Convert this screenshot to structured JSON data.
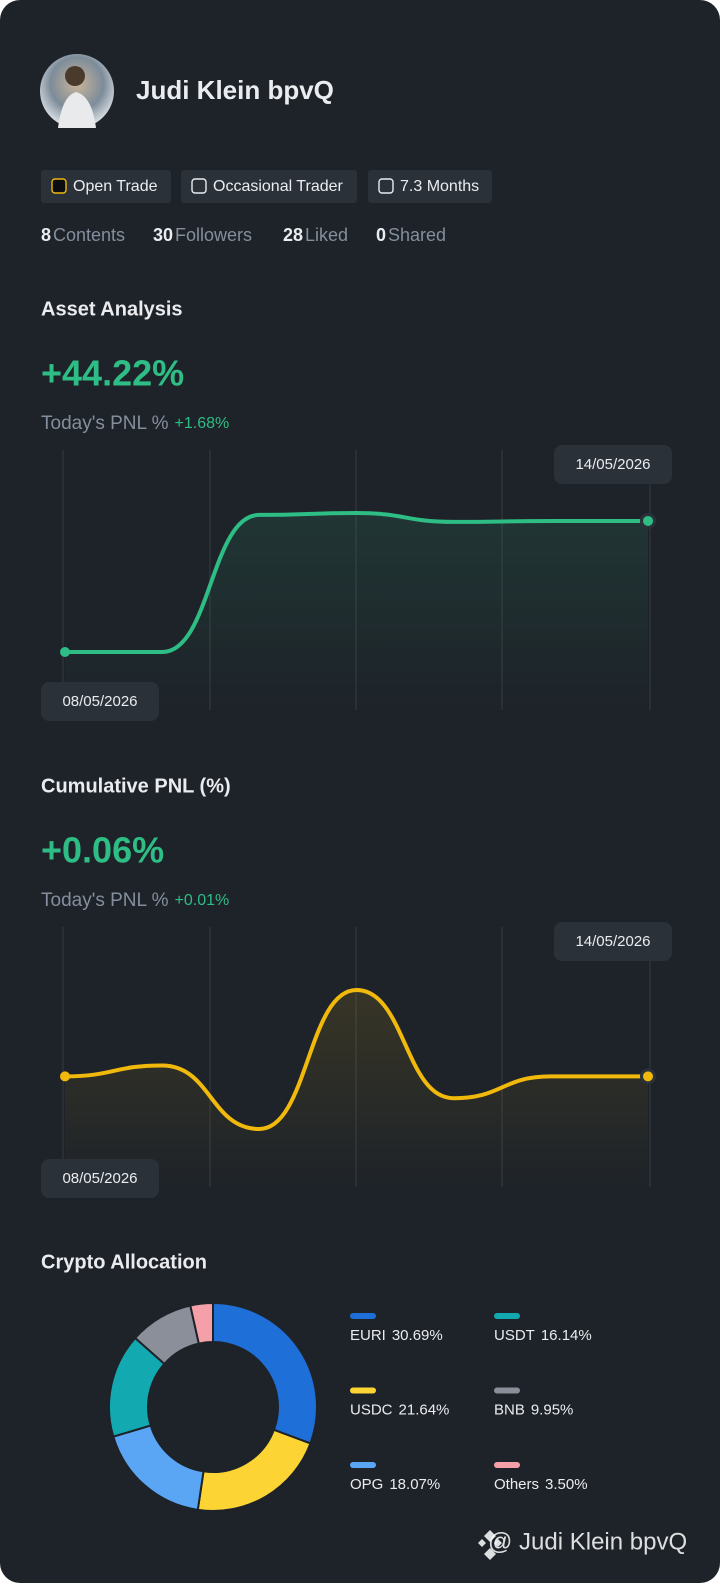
{
  "profile": {
    "name": "Judi Klein bpvQ",
    "tags": [
      "Open Trade",
      "Occasional Trader",
      "7.3 Months"
    ],
    "stats": [
      {
        "count": 8,
        "label": "Contents"
      },
      {
        "count": 30,
        "label": "Followers"
      },
      {
        "count": 28,
        "label": "Liked"
      },
      {
        "count": 0,
        "label": "Shared"
      }
    ]
  },
  "chart_data": [
    {
      "type": "line",
      "title": "Asset Analysis",
      "headline": "+44.22%",
      "pnl_label": "Today's PNL %",
      "pnl_value": "+1.68%",
      "color": "#2ebd85",
      "x": [
        "08/05/2026",
        null,
        null,
        null,
        null,
        null,
        "14/05/2026"
      ],
      "values": [
        0,
        0,
        46.25,
        46.9,
        43.9,
        44.2,
        44.22
      ]
    },
    {
      "type": "line",
      "title": "Cumulative PNL (%)",
      "headline": "+0.06%",
      "pnl_label": "Today's PNL %",
      "pnl_value": "+0.01%",
      "color": "#f0b90b",
      "x": [
        "08/05/2026",
        null,
        null,
        null,
        null,
        null,
        "14/05/2026"
      ],
      "values": [
        0.06,
        0.082,
        -0.046,
        0.234,
        0.016,
        0.06,
        0.06
      ]
    },
    {
      "type": "pie",
      "title": "Crypto Allocation",
      "categories": [
        "EURI",
        "USDC",
        "OPG",
        "USDT",
        "BNB",
        "Others"
      ],
      "values": [
        30.69,
        21.64,
        18.07,
        16.14,
        9.95,
        3.5
      ],
      "value_labels": [
        "30.69%",
        "21.64%",
        "18.07%",
        "16.14%",
        "9.95%",
        "3.50%"
      ],
      "colors": [
        "#1f6fd9",
        "#fcd535",
        "#5aa6f5",
        "#13a9b1",
        "#8a8f99",
        "#f5a0a8"
      ]
    }
  ],
  "watermark": "@ Judi Klein bpvQ"
}
